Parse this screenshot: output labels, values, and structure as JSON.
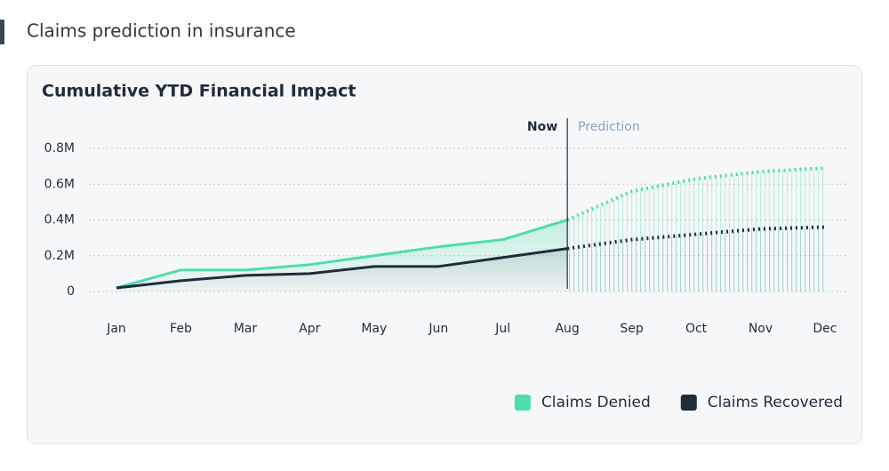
{
  "page_title": "Claims prediction in insurance",
  "chart_data": {
    "type": "line",
    "title": "Cumulative YTD Financial Impact",
    "categories": [
      "Jan",
      "Feb",
      "Mar",
      "Apr",
      "May",
      "Jun",
      "Jul",
      "Aug",
      "Sep",
      "Oct",
      "Nov",
      "Dec"
    ],
    "series": [
      {
        "name": "Claims Denied",
        "color": "#4fdcab",
        "values": [
          20000,
          120000,
          120000,
          150000,
          200000,
          250000,
          290000,
          400000,
          560000,
          630000,
          670000,
          690000
        ]
      },
      {
        "name": "Claims Recovered",
        "color": "#1f2d3a",
        "values": [
          20000,
          60000,
          90000,
          100000,
          140000,
          140000,
          190000,
          240000,
          290000,
          320000,
          350000,
          360000
        ]
      }
    ],
    "ylim": [
      0,
      800000
    ],
    "yticks": [
      0,
      {
        "value": 200000,
        "label": "0.2M"
      },
      {
        "value": 400000,
        "label": "0.4M"
      },
      {
        "value": 600000,
        "label": "0.6M"
      },
      {
        "value": 800000,
        "label": "0.8M"
      }
    ],
    "grid": true,
    "prediction_start": 7,
    "annotations": {
      "now": "Now",
      "prediction": "Prediction"
    },
    "legend": "bottom-right"
  }
}
